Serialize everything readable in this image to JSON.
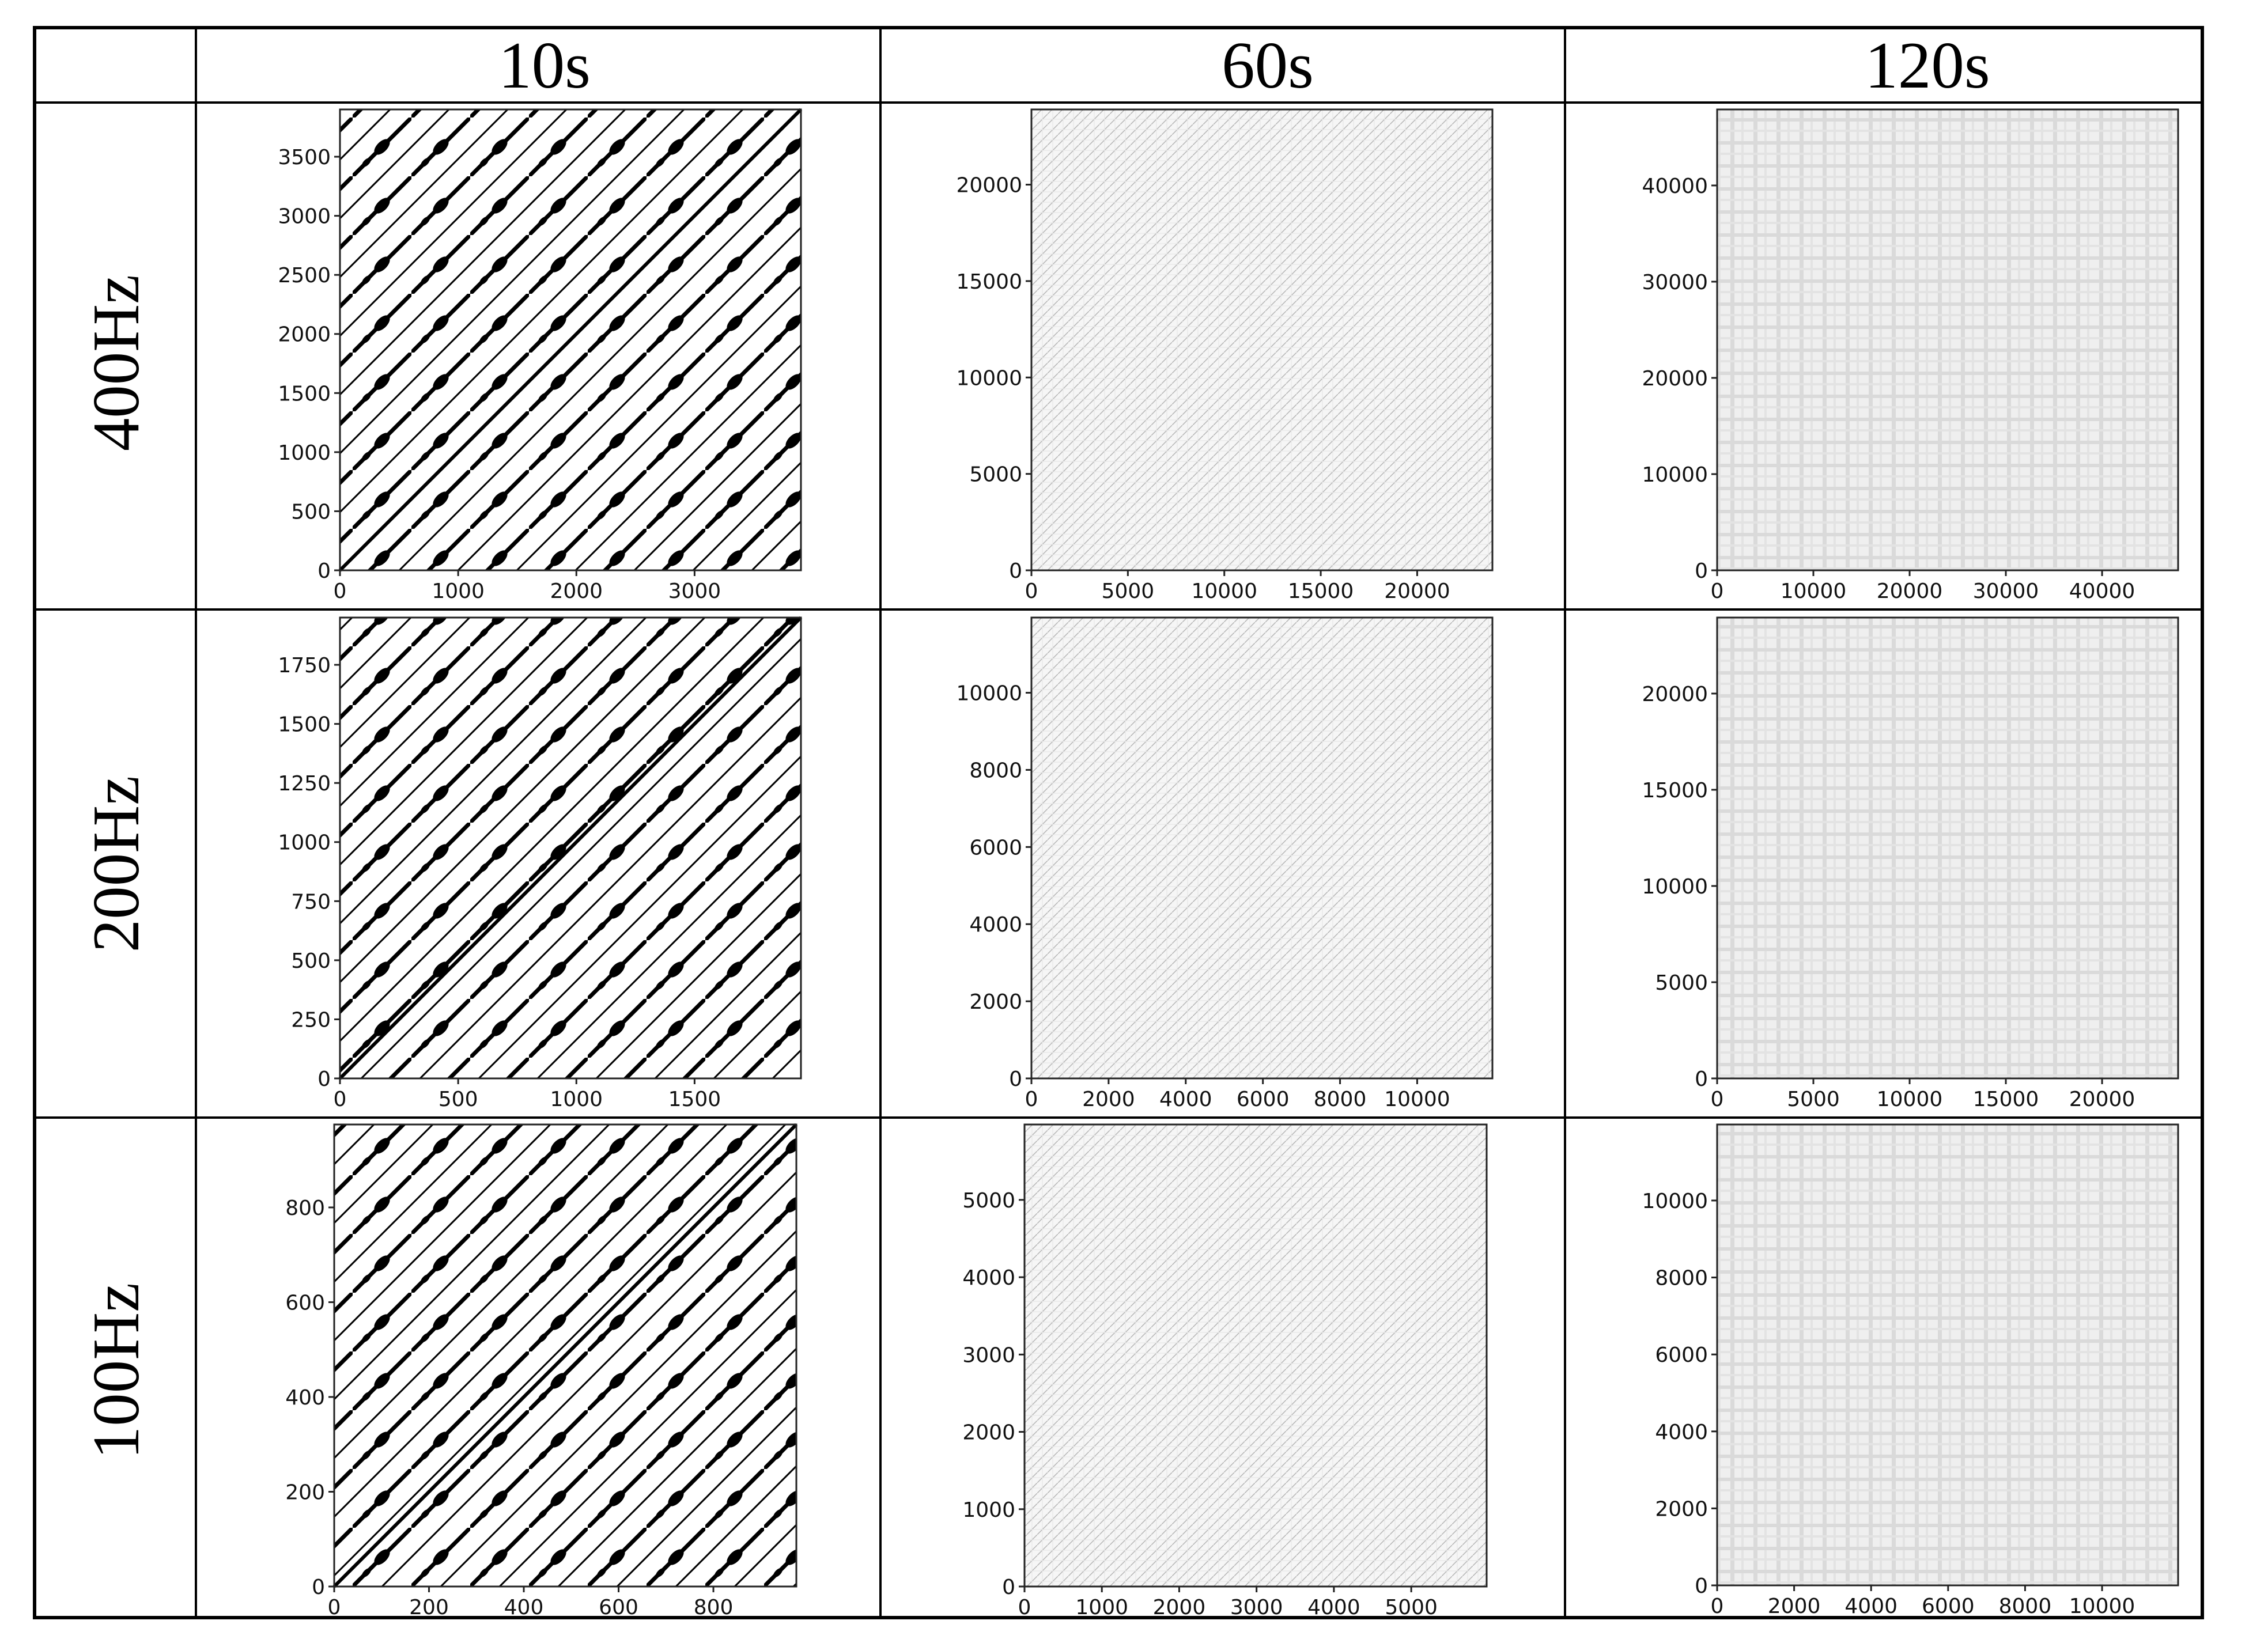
{
  "figure": {
    "column_headers": [
      "10s",
      "60s",
      "120s"
    ],
    "row_headers": [
      "400Hz",
      "200Hz",
      "100Hz"
    ]
  },
  "chart_data": [
    {
      "type": "heatmap",
      "row": "400Hz",
      "column": "10s",
      "style": "dense",
      "xlim": [
        0,
        3900
      ],
      "ylim": [
        0,
        3900
      ],
      "x_ticks": [
        0,
        1000,
        2000,
        3000
      ],
      "y_ticks": [
        0,
        500,
        1000,
        1500,
        2000,
        2500,
        3000,
        3500
      ],
      "x_tick_labels": [
        "0",
        "1000",
        "2000",
        "3000"
      ],
      "y_tick_labels": [
        "0",
        "500",
        "1000",
        "1500",
        "2000",
        "2500",
        "3000",
        "3500"
      ]
    },
    {
      "type": "heatmap",
      "row": "400Hz",
      "column": "60s",
      "style": "faint",
      "xlim": [
        0,
        23900
      ],
      "ylim": [
        0,
        23900
      ],
      "x_ticks": [
        0,
        5000,
        10000,
        15000,
        20000
      ],
      "y_ticks": [
        0,
        5000,
        10000,
        15000,
        20000
      ],
      "x_tick_labels": [
        "0",
        "5000",
        "10000",
        "15000",
        "20000"
      ],
      "y_tick_labels": [
        "0",
        "5000",
        "10000",
        "15000",
        "20000"
      ]
    },
    {
      "type": "heatmap",
      "row": "400Hz",
      "column": "120s",
      "style": "grid",
      "xlim": [
        0,
        47900
      ],
      "ylim": [
        0,
        47900
      ],
      "x_ticks": [
        0,
        10000,
        20000,
        30000,
        40000
      ],
      "y_ticks": [
        0,
        10000,
        20000,
        30000,
        40000
      ],
      "x_tick_labels": [
        "0",
        "10000",
        "20000",
        "30000",
        "40000"
      ],
      "y_tick_labels": [
        "0",
        "10000",
        "20000",
        "30000",
        "40000"
      ]
    },
    {
      "type": "heatmap",
      "row": "200Hz",
      "column": "10s",
      "style": "dense",
      "xlim": [
        0,
        1950
      ],
      "ylim": [
        0,
        1950
      ],
      "x_ticks": [
        0,
        500,
        1000,
        1500
      ],
      "y_ticks": [
        0,
        250,
        500,
        750,
        1000,
        1250,
        1500,
        1750
      ],
      "x_tick_labels": [
        "0",
        "500",
        "1000",
        "1500"
      ],
      "y_tick_labels": [
        "0",
        "250",
        "500",
        "750",
        "1000",
        "1250",
        "1500",
        "1750"
      ]
    },
    {
      "type": "heatmap",
      "row": "200Hz",
      "column": "60s",
      "style": "faint",
      "xlim": [
        0,
        11950
      ],
      "ylim": [
        0,
        11950
      ],
      "x_ticks": [
        0,
        2000,
        4000,
        6000,
        8000,
        10000
      ],
      "y_ticks": [
        0,
        2000,
        4000,
        6000,
        8000,
        10000
      ],
      "x_tick_labels": [
        "0",
        "2000",
        "4000",
        "6000",
        "8000",
        "10000"
      ],
      "y_tick_labels": [
        "0",
        "2000",
        "4000",
        "6000",
        "8000",
        "10000"
      ]
    },
    {
      "type": "heatmap",
      "row": "200Hz",
      "column": "120s",
      "style": "grid",
      "xlim": [
        0,
        23950
      ],
      "ylim": [
        0,
        23950
      ],
      "x_ticks": [
        0,
        5000,
        10000,
        15000,
        20000
      ],
      "y_ticks": [
        0,
        5000,
        10000,
        15000,
        20000
      ],
      "x_tick_labels": [
        "0",
        "5000",
        "10000",
        "15000",
        "20000"
      ],
      "y_tick_labels": [
        "0",
        "5000",
        "10000",
        "15000",
        "20000"
      ]
    },
    {
      "type": "heatmap",
      "row": "100Hz",
      "column": "10s",
      "style": "dense",
      "xlim": [
        0,
        975
      ],
      "ylim": [
        0,
        975
      ],
      "x_ticks": [
        0,
        200,
        400,
        600,
        800
      ],
      "y_ticks": [
        0,
        200,
        400,
        600,
        800
      ],
      "x_tick_labels": [
        "0",
        "200",
        "400",
        "600",
        "800"
      ],
      "y_tick_labels": [
        "0",
        "200",
        "400",
        "600",
        "800"
      ]
    },
    {
      "type": "heatmap",
      "row": "100Hz",
      "column": "60s",
      "style": "faint",
      "xlim": [
        0,
        5975
      ],
      "ylim": [
        0,
        5975
      ],
      "x_ticks": [
        0,
        1000,
        2000,
        3000,
        4000,
        5000
      ],
      "y_ticks": [
        0,
        1000,
        2000,
        3000,
        4000,
        5000
      ],
      "x_tick_labels": [
        "0",
        "1000",
        "2000",
        "3000",
        "4000",
        "5000"
      ],
      "y_tick_labels": [
        "0",
        "1000",
        "2000",
        "3000",
        "4000",
        "5000"
      ]
    },
    {
      "type": "heatmap",
      "row": "100Hz",
      "column": "120s",
      "style": "grid",
      "xlim": [
        0,
        11975
      ],
      "ylim": [
        0,
        11975
      ],
      "x_ticks": [
        0,
        2000,
        4000,
        6000,
        8000,
        10000
      ],
      "y_ticks": [
        0,
        2000,
        4000,
        6000,
        8000,
        10000
      ],
      "x_tick_labels": [
        "0",
        "2000",
        "4000",
        "6000",
        "8000",
        "10000"
      ],
      "y_tick_labels": [
        "0",
        "2000",
        "4000",
        "6000",
        "8000",
        "10000"
      ]
    }
  ]
}
